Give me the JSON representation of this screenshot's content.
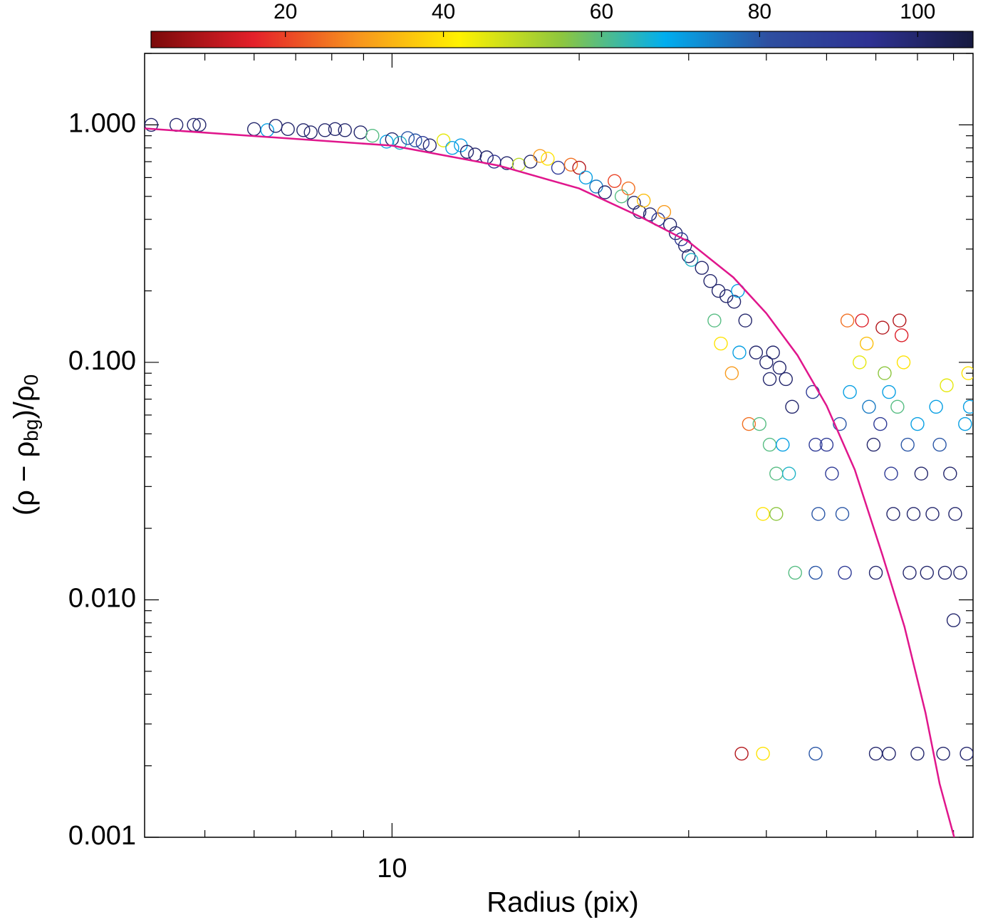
{
  "chart_data": {
    "type": "scatter",
    "xlabel": "Radius (pix)",
    "ylabel": [
      {
        "text": "(ρ − ρ"
      },
      {
        "text": "bg",
        "sub": true
      },
      {
        "text": ")/ρ"
      },
      {
        "text": "0",
        "sub": true
      }
    ],
    "xlog": true,
    "ylog": true,
    "xlim": [
      4,
      86
    ],
    "xticks": [
      10
    ],
    "xminorticks": [
      5,
      6,
      7,
      8,
      9,
      20,
      30,
      40,
      50,
      60,
      70,
      80
    ],
    "ylim": [
      0.001,
      2
    ],
    "yticks": [
      {
        "value": 0.001,
        "label": "0.001"
      },
      {
        "value": 0.01,
        "label": "0.010"
      },
      {
        "value": 0.1,
        "label": "0.100"
      },
      {
        "value": 1,
        "label": "1.000"
      }
    ],
    "yminorticks": [
      0.002,
      0.003,
      0.004,
      0.005,
      0.006,
      0.007,
      0.008,
      0.009,
      0.02,
      0.03,
      0.04,
      0.05,
      0.06,
      0.07,
      0.08,
      0.09,
      0.2,
      0.3,
      0.4,
      0.5,
      0.6,
      0.7,
      0.8,
      0.9,
      2
    ],
    "clim": [
      3,
      107
    ],
    "cticks": [
      20,
      40,
      60,
      80,
      100
    ],
    "colormap": [
      "#7a0a0a",
      "#e4202a",
      "#f7931e",
      "#fff200",
      "#8dc63f",
      "#00aeef",
      "#2e4fa0",
      "#2e3192",
      "#161a40"
    ],
    "points": {
      "x": [
        4.1,
        4.5,
        4.8,
        4.9,
        6.0,
        6.3,
        6.5,
        6.8,
        7.2,
        7.4,
        7.8,
        8.1,
        8.4,
        8.9,
        9.3,
        9.8,
        10.0,
        10.3,
        10.6,
        10.9,
        11.2,
        11.5,
        12.1,
        12.5,
        12.9,
        13.2,
        13.6,
        14.2,
        14.6,
        15.3,
        16.0,
        16.7,
        17.3,
        17.8,
        18.5,
        19.4,
        20.0,
        20.5,
        21.3,
        22.0,
        22.8,
        23.4,
        24.0,
        24.5,
        25.0,
        25.4,
        26.0,
        26.8,
        27.4,
        28.0,
        28.6,
        29.2,
        29.6,
        30.0,
        30.3,
        31.5,
        32.5,
        33.5,
        34.5,
        35.5,
        36.0,
        37.0,
        33.0,
        33.8,
        35.2,
        36.2,
        38.5,
        40.0,
        40.5,
        41.0,
        42.0,
        43.0,
        44.0,
        37.5,
        39.0,
        40.5,
        42.5,
        41.5,
        43.5,
        39.5,
        41.5,
        44.5,
        48.0,
        48.5,
        48.0,
        47.5,
        50.0,
        51.0,
        52.5,
        53.0,
        53.5,
        54.5,
        54.0,
        57.0,
        56.5,
        58.0,
        58.5,
        59.5,
        60.0,
        61.0,
        61.5,
        62.0,
        63.0,
        63.5,
        64.0,
        65.0,
        65.5,
        66.0,
        66.5,
        67.5,
        68.0,
        69.0,
        70.0,
        71.0,
        72.5,
        74.0,
        75.0,
        76.0,
        77.5,
        78.0,
        79.0,
        80.5,
        82.0,
        83.5,
        84.5,
        85.0,
        80.0,
        36.5,
        39.5,
        48.0,
        60.0,
        63.0,
        70.0,
        77.0,
        84.0
      ],
      "values": [
        1.0,
        1.0,
        1.0,
        1.0,
        0.96,
        0.95,
        0.99,
        0.96,
        0.95,
        0.93,
        0.95,
        0.96,
        0.95,
        0.93,
        0.9,
        0.85,
        0.87,
        0.84,
        0.88,
        0.86,
        0.84,
        0.82,
        0.86,
        0.8,
        0.82,
        0.77,
        0.75,
        0.73,
        0.7,
        0.69,
        0.68,
        0.7,
        0.74,
        0.72,
        0.66,
        0.68,
        0.66,
        0.6,
        0.55,
        0.52,
        0.58,
        0.5,
        0.54,
        0.47,
        0.43,
        0.48,
        0.42,
        0.4,
        0.43,
        0.38,
        0.35,
        0.33,
        0.31,
        0.28,
        0.27,
        0.25,
        0.22,
        0.2,
        0.19,
        0.18,
        0.2,
        0.15,
        0.15,
        0.12,
        0.09,
        0.11,
        0.11,
        0.1,
        0.085,
        0.11,
        0.095,
        0.085,
        0.065,
        0.055,
        0.055,
        0.045,
        0.045,
        0.034,
        0.034,
        0.023,
        0.023,
        0.013,
        0.013,
        0.023,
        0.045,
        0.075,
        0.045,
        0.034,
        0.055,
        0.023,
        0.013,
        0.075,
        0.15,
        0.15,
        0.1,
        0.12,
        0.065,
        0.045,
        0.013,
        0.055,
        0.14,
        0.09,
        0.075,
        0.034,
        0.023,
        0.065,
        0.15,
        0.13,
        0.1,
        0.045,
        0.013,
        0.023,
        0.055,
        0.034,
        0.013,
        0.023,
        0.065,
        0.045,
        0.013,
        0.08,
        0.034,
        0.023,
        0.013,
        0.055,
        0.09,
        0.065,
        0.0082,
        0.00225,
        0.00225,
        0.00225,
        0.00225,
        0.00225,
        0.00225,
        0.00225,
        0.00225
      ],
      "c": [
        100,
        100,
        100,
        100,
        100,
        70,
        100,
        100,
        100,
        100,
        100,
        100,
        100,
        100,
        60,
        70,
        100,
        65,
        80,
        80,
        90,
        100,
        45,
        70,
        70,
        100,
        100,
        100,
        95,
        100,
        50,
        100,
        30,
        40,
        90,
        25,
        10,
        70,
        75,
        100,
        20,
        60,
        25,
        100,
        100,
        35,
        100,
        90,
        30,
        100,
        100,
        90,
        100,
        100,
        65,
        100,
        100,
        100,
        100,
        100,
        70,
        100,
        60,
        40,
        30,
        70,
        100,
        100,
        100,
        100,
        100,
        100,
        100,
        25,
        60,
        60,
        70,
        60,
        65,
        40,
        55,
        60,
        80,
        80,
        90,
        90,
        90,
        90,
        80,
        80,
        90,
        70,
        25,
        15,
        45,
        35,
        75,
        100,
        100,
        90,
        10,
        55,
        70,
        90,
        100,
        60,
        10,
        15,
        40,
        80,
        100,
        100,
        70,
        100,
        100,
        100,
        70,
        80,
        100,
        45,
        100,
        100,
        100,
        70,
        40,
        70,
        100,
        10,
        40,
        80,
        100,
        100,
        100,
        100,
        100
      ]
    },
    "curve": {
      "color": "#e0168c",
      "x": [
        4,
        10,
        14.85,
        20,
        25.1,
        30,
        35.4,
        40,
        44.9,
        50,
        55.5,
        61.5,
        66.7,
        72.1,
        76.0,
        80.2
      ],
      "values": [
        0.966,
        0.818,
        0.674,
        0.54,
        0.41,
        0.322,
        0.228,
        0.161,
        0.107,
        0.0657,
        0.0353,
        0.0154,
        0.00771,
        0.00335,
        0.00168,
        0.001
      ]
    }
  }
}
